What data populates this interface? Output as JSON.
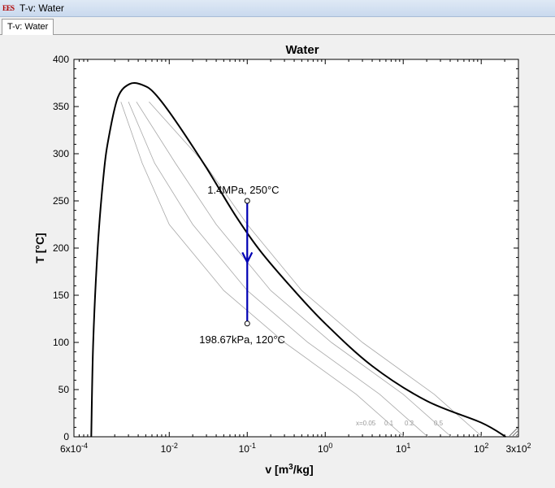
{
  "window": {
    "title": "T-v: Water",
    "icon": "ees-app-icon"
  },
  "tabs": [
    {
      "label": "T-v: Water",
      "active": true
    }
  ],
  "chart_data": {
    "type": "line",
    "title": "Water",
    "xlabel": "v [m³/kg]",
    "ylabel": "T [°C]",
    "x_scale": "log",
    "xlim": [
      0.0006,
      300
    ],
    "ylim": [
      0,
      400
    ],
    "grid": false,
    "x_ticks": [
      {
        "value": 0.0006,
        "label": "6x10-4"
      },
      {
        "value": 0.01,
        "label": "10-2"
      },
      {
        "value": 0.1,
        "label": "10-1"
      },
      {
        "value": 1,
        "label": "100"
      },
      {
        "value": 10,
        "label": "101"
      },
      {
        "value": 100,
        "label": "102"
      },
      {
        "value": 300,
        "label": "3x102"
      }
    ],
    "y_ticks": [
      0,
      50,
      100,
      150,
      200,
      250,
      300,
      350,
      400
    ],
    "saturation_dome": {
      "name": "saturation curve",
      "color": "#000000",
      "points": [
        [
          0.001,
          0
        ],
        [
          0.00106,
          100
        ],
        [
          0.00121,
          200
        ],
        [
          0.00145,
          280
        ],
        [
          0.0017,
          320
        ],
        [
          0.0022,
          360
        ],
        [
          0.0031,
          373.9
        ],
        [
          0.0045,
          373
        ],
        [
          0.0065,
          364
        ],
        [
          0.012,
          335
        ],
        [
          0.03,
          285
        ],
        [
          0.07,
          235
        ],
        [
          0.15,
          196
        ],
        [
          0.4,
          155
        ],
        [
          1.0,
          120
        ],
        [
          4.0,
          75
        ],
        [
          20,
          38
        ],
        [
          100,
          15
        ],
        [
          206,
          0
        ]
      ]
    },
    "quality_lines": [
      {
        "label": "x=0.05",
        "points": [
          [
            0.0024,
            355
          ],
          [
            0.0045,
            290
          ],
          [
            0.01,
            225
          ],
          [
            0.05,
            155
          ],
          [
            0.3,
            100
          ],
          [
            2.5,
            45
          ],
          [
            10.3,
            0
          ]
        ]
      },
      {
        "label": "0.1",
        "points": [
          [
            0.003,
            355
          ],
          [
            0.0065,
            290
          ],
          [
            0.02,
            225
          ],
          [
            0.1,
            155
          ],
          [
            0.6,
            100
          ],
          [
            5,
            45
          ],
          [
            20.6,
            0
          ]
        ]
      },
      {
        "label": "0.2",
        "points": [
          [
            0.0038,
            355
          ],
          [
            0.012,
            290
          ],
          [
            0.04,
            225
          ],
          [
            0.2,
            155
          ],
          [
            1.2,
            100
          ],
          [
            10,
            45
          ],
          [
            41.2,
            0
          ]
        ]
      },
      {
        "label": "0.5",
        "points": [
          [
            0.0055,
            355
          ],
          [
            0.028,
            290
          ],
          [
            0.1,
            225
          ],
          [
            0.5,
            155
          ],
          [
            3,
            100
          ],
          [
            25,
            45
          ],
          [
            103,
            0
          ]
        ]
      }
    ],
    "process": {
      "color": "#0000b4",
      "points": [
        {
          "v": 0.1,
          "T": 250,
          "label": "1.4MPa, 250°C"
        },
        {
          "v": 0.1,
          "T": 120,
          "label": "198.67kPa, 120°C"
        }
      ]
    }
  }
}
